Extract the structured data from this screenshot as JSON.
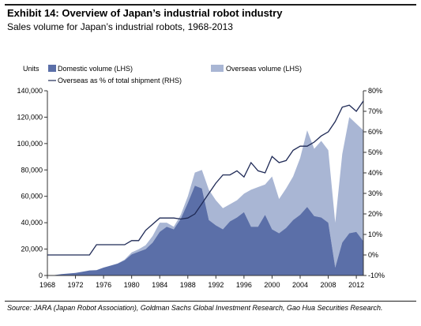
{
  "exhibit": {
    "title": "Exhibit 14: Overview of Japan’s industrial robot industry",
    "subtitle": "Sales volume for Japan’s industrial robots, 1968-2013",
    "source": "Source: JARA (Japan Robot Association), Goldman Sachs Global Investment Research, Gao Hua Securities Research."
  },
  "chart_data": {
    "type": "area",
    "title": "",
    "units_label": "Units",
    "x": [
      1968,
      1969,
      1970,
      1971,
      1972,
      1973,
      1974,
      1975,
      1976,
      1977,
      1978,
      1979,
      1980,
      1981,
      1982,
      1983,
      1984,
      1985,
      1986,
      1987,
      1988,
      1989,
      1990,
      1991,
      1992,
      1993,
      1994,
      1995,
      1996,
      1997,
      1998,
      1999,
      2000,
      2001,
      2002,
      2003,
      2004,
      2005,
      2006,
      2007,
      2008,
      2009,
      2010,
      2011,
      2012,
      2013
    ],
    "x_ticks": [
      "1968",
      "1972",
      "1976",
      "1980",
      "1984",
      "1988",
      "1992",
      "1996",
      "2000",
      "2004",
      "2008",
      "2012"
    ],
    "ylim_left": [
      0,
      140000
    ],
    "y_ticks_left": [
      "0",
      "20,000",
      "40,000",
      "60,000",
      "80,000",
      "100,000",
      "120,000",
      "140,000"
    ],
    "ylim_right": [
      -10,
      80
    ],
    "y_ticks_right": [
      "-10%",
      "0%",
      "10%",
      "20%",
      "30%",
      "40%",
      "50%",
      "60%",
      "70%",
      "80%"
    ],
    "grid": false,
    "legend_position": "top",
    "series": [
      {
        "name": "Domestic volume (LHS)",
        "axis": "left",
        "color": "#5b6fa8",
        "values": [
          0,
          300,
          1000,
          1500,
          2000,
          2800,
          3800,
          4000,
          6000,
          7500,
          9000,
          11500,
          16000,
          18000,
          20000,
          25000,
          33000,
          37000,
          35000,
          43000,
          55000,
          68000,
          66000,
          42000,
          38000,
          35000,
          41000,
          44000,
          48000,
          37000,
          37000,
          46000,
          35000,
          32000,
          36000,
          42000,
          46000,
          52000,
          45000,
          44000,
          40000,
          6000,
          25000,
          32000,
          33000,
          26000
        ]
      },
      {
        "name": "Overseas volume (LHS)",
        "axis": "left",
        "color": "#a9b6d4",
        "values": [
          0,
          0,
          0,
          0,
          0,
          0,
          0,
          0,
          0,
          0,
          100,
          500,
          1500,
          1900,
          3000,
          5000,
          7000,
          3000,
          2000,
          3000,
          5000,
          10000,
          14000,
          23000,
          19000,
          16000,
          13000,
          13000,
          14000,
          28000,
          30000,
          23000,
          40000,
          26000,
          30000,
          33000,
          43000,
          58000,
          51000,
          58000,
          55000,
          34000,
          67000,
          88000,
          82000,
          84000
        ]
      },
      {
        "name": "Overseas as % of total shipment (RHS)",
        "axis": "right",
        "color": "#1f2a56",
        "values": [
          0,
          0,
          0,
          0,
          0,
          0,
          0,
          5,
          5,
          5,
          5,
          5,
          7,
          7,
          12,
          15,
          18,
          18,
          18,
          17.5,
          18,
          20,
          25,
          30,
          35,
          39,
          39,
          41,
          38,
          45,
          41,
          40,
          48,
          45,
          46,
          51,
          53,
          53,
          55,
          58,
          60,
          65,
          72,
          73,
          70,
          75
        ]
      }
    ]
  }
}
